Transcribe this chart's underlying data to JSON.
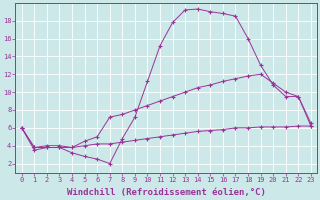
{
  "xlabel": "Windchill (Refroidissement éolien,°C)",
  "bg_color": "#cde8e8",
  "line_color": "#993399",
  "grid_color": "#b0d0d0",
  "xlim": [
    -0.5,
    23.5
  ],
  "ylim": [
    1.0,
    20.0
  ],
  "xticks": [
    0,
    1,
    2,
    3,
    4,
    5,
    6,
    7,
    8,
    9,
    10,
    11,
    12,
    13,
    14,
    15,
    16,
    17,
    18,
    19,
    20,
    21,
    22,
    23
  ],
  "yticks": [
    2,
    4,
    6,
    8,
    10,
    12,
    14,
    16,
    18
  ],
  "line1_x": [
    0,
    1,
    2,
    3,
    4,
    5,
    6,
    7,
    8,
    9,
    10,
    11,
    12,
    13,
    14,
    15,
    16,
    17,
    18,
    19,
    20,
    21,
    22,
    23
  ],
  "line1_y": [
    6.0,
    3.5,
    3.8,
    3.8,
    3.2,
    2.8,
    2.5,
    2.0,
    4.8,
    7.2,
    11.2,
    15.2,
    17.8,
    19.2,
    19.3,
    19.0,
    18.8,
    18.5,
    16.0,
    13.0,
    10.8,
    9.5,
    9.5,
    6.2
  ],
  "line2_x": [
    0,
    1,
    2,
    3,
    4,
    5,
    6,
    7,
    8,
    9,
    10,
    11,
    12,
    13,
    14,
    15,
    16,
    17,
    18,
    19,
    20,
    21,
    22,
    23
  ],
  "line2_y": [
    6.0,
    3.8,
    4.0,
    4.0,
    3.8,
    4.5,
    5.0,
    7.2,
    7.5,
    8.0,
    8.5,
    9.0,
    9.5,
    10.0,
    10.5,
    10.8,
    11.2,
    11.5,
    11.8,
    12.0,
    11.0,
    10.0,
    9.5,
    6.5
  ],
  "line3_x": [
    0,
    1,
    2,
    3,
    4,
    5,
    6,
    7,
    8,
    9,
    10,
    11,
    12,
    13,
    14,
    15,
    16,
    17,
    18,
    19,
    20,
    21,
    22,
    23
  ],
  "line3_y": [
    6.0,
    3.8,
    3.8,
    3.8,
    3.8,
    4.0,
    4.2,
    4.2,
    4.4,
    4.6,
    4.8,
    5.0,
    5.2,
    5.4,
    5.6,
    5.7,
    5.8,
    6.0,
    6.0,
    6.1,
    6.1,
    6.1,
    6.2,
    6.2
  ],
  "figsize": [
    3.2,
    2.0
  ],
  "dpi": 100,
  "xlabel_fontsize": 6.5,
  "tick_fontsize": 5.0
}
